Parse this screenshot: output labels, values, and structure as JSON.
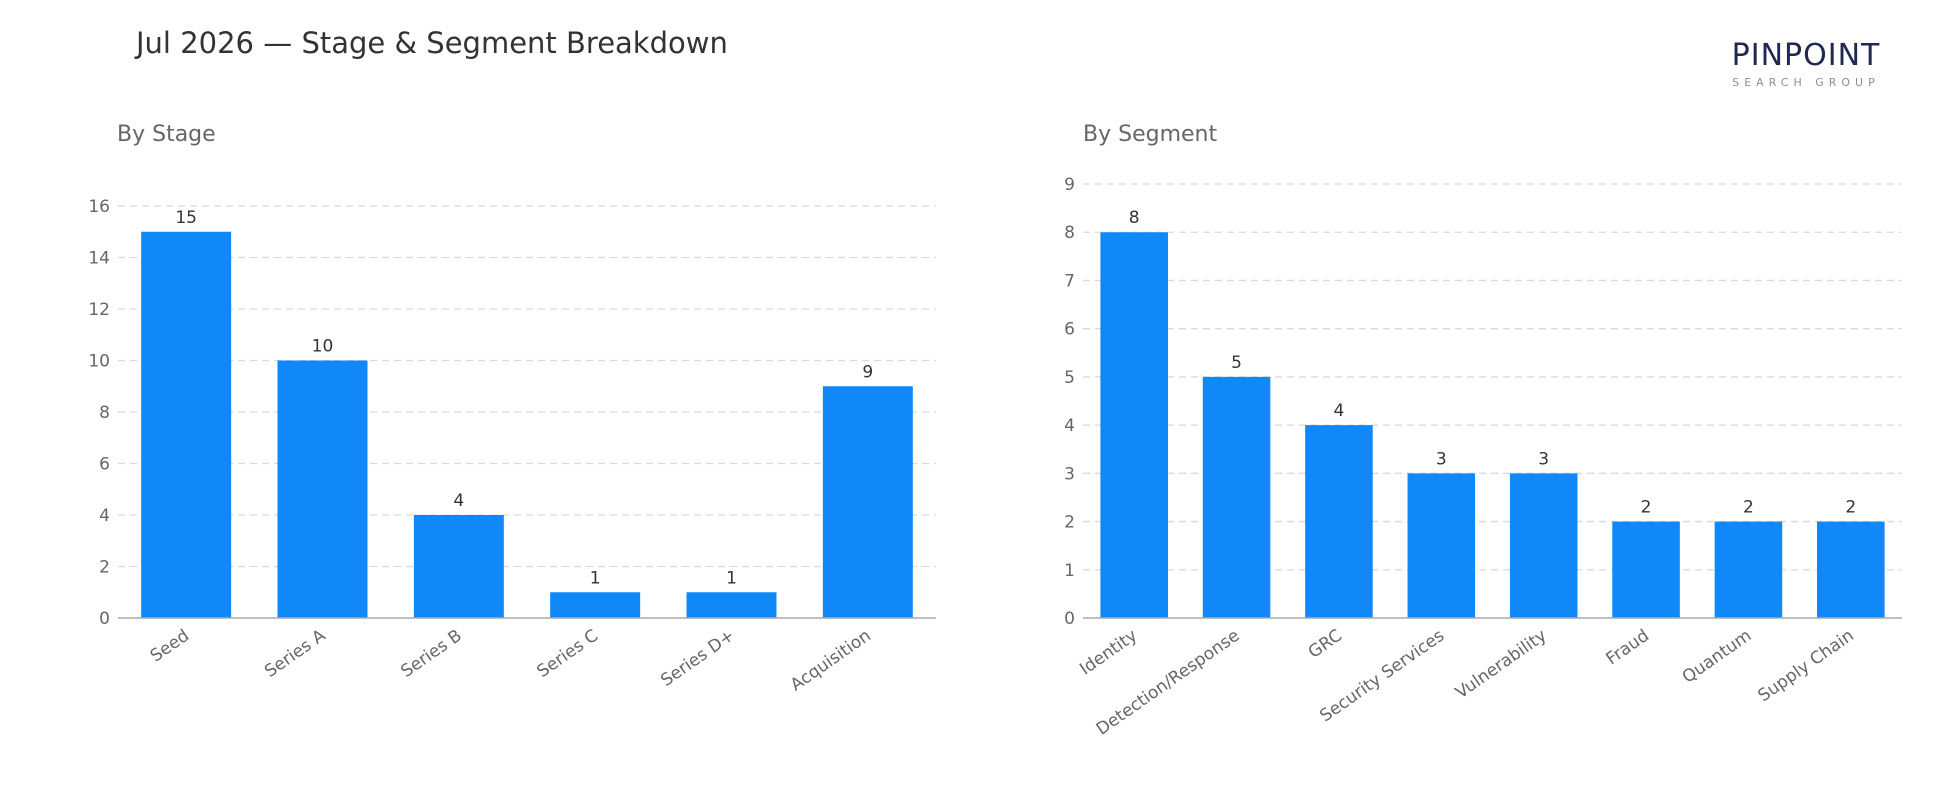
{
  "header": {
    "title": "Jul 2026 — Stage & Segment Breakdown",
    "logo": {
      "word": "PINPOINT",
      "sub": "SEARCH GROUP"
    }
  },
  "colors": {
    "bar": "#1188f8",
    "grid": "#d9d9d9",
    "axis": "#aaaaaa",
    "tick_text": "#666666",
    "label_text": "#333333"
  },
  "chart_data": [
    {
      "type": "bar",
      "title": "By Stage",
      "xlabel": "",
      "ylabel": "",
      "categories": [
        "Seed",
        "Series A",
        "Series B",
        "Series C",
        "Series D+",
        "Acquisition"
      ],
      "values": [
        15,
        10,
        4,
        1,
        1,
        9
      ],
      "ylim": [
        0,
        16
      ],
      "yticks": [
        0,
        2,
        4,
        6,
        8,
        10,
        12,
        14,
        16
      ],
      "grid": true,
      "data_labels": true
    },
    {
      "type": "bar",
      "title": "By Segment",
      "xlabel": "",
      "ylabel": "",
      "categories": [
        "Identity",
        "Detection/Response",
        "GRC",
        "Security Services",
        "Vulnerability",
        "Fraud",
        "Quantum",
        "Supply Chain"
      ],
      "values": [
        8,
        5,
        4,
        3,
        3,
        2,
        2,
        2
      ],
      "ylim": [
        0,
        9
      ],
      "yticks": [
        0,
        1,
        2,
        3,
        4,
        5,
        6,
        7,
        8,
        9
      ],
      "grid": true,
      "data_labels": true
    }
  ]
}
